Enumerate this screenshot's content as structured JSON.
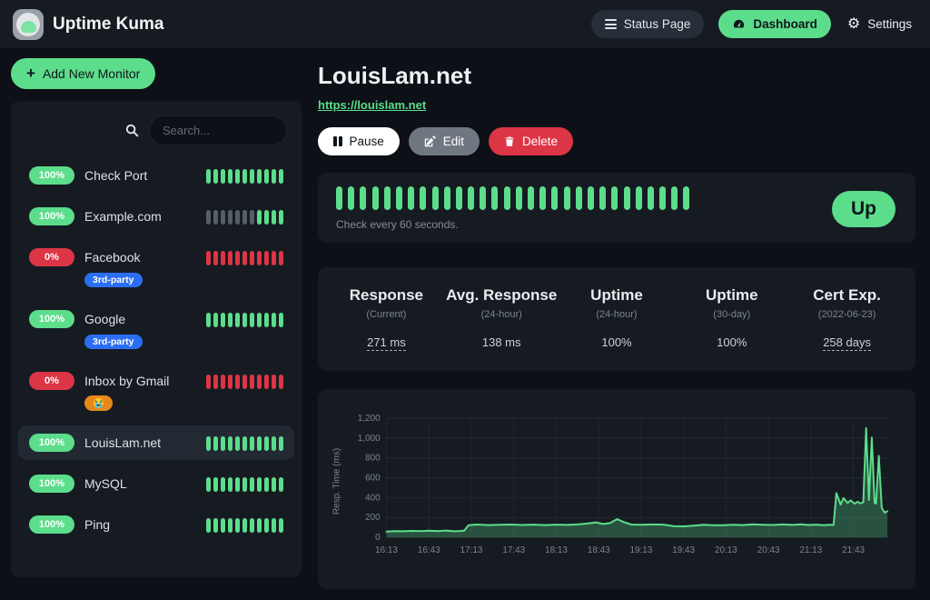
{
  "colors": {
    "accent_green": "#5cdd8b",
    "danger_red": "#dc3545",
    "tag_blue": "#2c6ef2",
    "tag_orange": "#e8871a",
    "beat_up": "#5cdd8b",
    "beat_down": "#dc3545",
    "beat_empty": "#575e66",
    "card_bg": "#161b22",
    "page_bg": "#0d1117"
  },
  "navbar": {
    "brand": "Uptime Kuma",
    "status_page_label": "Status Page",
    "dashboard_label": "Dashboard",
    "settings_label": "Settings"
  },
  "sidebar": {
    "add_button_label": "Add New Monitor",
    "search_placeholder": "Search...",
    "monitors": [
      {
        "name": "Check Port",
        "uptime": "100%",
        "status": "up",
        "selected": false,
        "beats": [
          {
            "state": "up",
            "count": 11
          }
        ]
      },
      {
        "name": "Example.com",
        "uptime": "100%",
        "status": "up",
        "selected": false,
        "beats": [
          {
            "state": "empty",
            "count": 7
          },
          {
            "state": "up",
            "count": 4
          }
        ]
      },
      {
        "name": "Facebook",
        "uptime": "0%",
        "status": "down",
        "selected": false,
        "tag": {
          "label": "3rd-party",
          "color": "#2c6ef2"
        },
        "beats": [
          {
            "state": "down",
            "count": 11
          }
        ]
      },
      {
        "name": "Google",
        "uptime": "100%",
        "status": "up",
        "selected": false,
        "tag": {
          "label": "3rd-party",
          "color": "#2c6ef2"
        },
        "beats": [
          {
            "state": "up",
            "count": 11
          }
        ]
      },
      {
        "name": "Inbox by Gmail",
        "uptime": "0%",
        "status": "down",
        "selected": false,
        "tag": {
          "label": "😭",
          "color": "#e8871a"
        },
        "beats": [
          {
            "state": "down",
            "count": 11
          }
        ]
      },
      {
        "name": "LouisLam.net",
        "uptime": "100%",
        "status": "up",
        "selected": true,
        "beats": [
          {
            "state": "up",
            "count": 11
          }
        ]
      },
      {
        "name": "MySQL",
        "uptime": "100%",
        "status": "up",
        "selected": false,
        "beats": [
          {
            "state": "up",
            "count": 11
          }
        ]
      },
      {
        "name": "Ping",
        "uptime": "100%",
        "status": "up",
        "selected": false,
        "beats": [
          {
            "state": "up",
            "count": 11
          }
        ]
      }
    ]
  },
  "main": {
    "title": "LouisLam.net",
    "url": "https://louislam.net",
    "actions": {
      "pause": "Pause",
      "edit": "Edit",
      "delete": "Delete"
    },
    "heartbeat": {
      "beat_count": 30,
      "status_label": "Up",
      "interval_text": "Check every 60 seconds."
    },
    "stats": [
      {
        "title": "Response",
        "subtitle": "(Current)",
        "value": "271 ms",
        "link": true
      },
      {
        "title": "Avg. Response",
        "subtitle": "(24-hour)",
        "value": "138 ms",
        "link": false
      },
      {
        "title": "Uptime",
        "subtitle": "(24-hour)",
        "value": "100%",
        "link": false
      },
      {
        "title": "Uptime",
        "subtitle": "(30-day)",
        "value": "100%",
        "link": false
      },
      {
        "title": "Cert Exp.",
        "subtitle": "(2022-06-23)",
        "value": "258 days",
        "link": true
      }
    ]
  },
  "chart_data": {
    "type": "area",
    "title": "",
    "xlabel": "",
    "ylabel": "Resp. Time (ms)",
    "ylim": [
      0,
      1200
    ],
    "x_range_minutes": [
      0,
      356
    ],
    "grid": true,
    "legend": "none",
    "line_color": "#5cdd8b",
    "fill_opacity": 0.28,
    "y_ticks": [
      {
        "value": 0,
        "label": "0"
      },
      {
        "value": 200,
        "label": "200"
      },
      {
        "value": 400,
        "label": "400"
      },
      {
        "value": 600,
        "label": "600"
      },
      {
        "value": 800,
        "label": "800"
      },
      {
        "value": 1000,
        "label": "1,000"
      },
      {
        "value": 1200,
        "label": "1,200"
      }
    ],
    "x_ticks": [
      {
        "min": 0,
        "label": "16:13"
      },
      {
        "min": 30,
        "label": "16:43"
      },
      {
        "min": 60,
        "label": "17:13"
      },
      {
        "min": 90,
        "label": "17:43"
      },
      {
        "min": 120,
        "label": "18:13"
      },
      {
        "min": 150,
        "label": "18:43"
      },
      {
        "min": 180,
        "label": "19:13"
      },
      {
        "min": 210,
        "label": "19:43"
      },
      {
        "min": 240,
        "label": "20:13"
      },
      {
        "min": 270,
        "label": "20:43"
      },
      {
        "min": 300,
        "label": "21:13"
      },
      {
        "min": 330,
        "label": "21:43"
      }
    ],
    "series": [
      {
        "name": "Resp. Time (ms)",
        "points": [
          [
            0,
            58
          ],
          [
            6,
            62
          ],
          [
            12,
            60
          ],
          [
            18,
            64
          ],
          [
            24,
            61
          ],
          [
            30,
            66
          ],
          [
            36,
            62
          ],
          [
            42,
            68
          ],
          [
            48,
            60
          ],
          [
            52,
            63
          ],
          [
            55,
            68
          ],
          [
            58,
            122
          ],
          [
            64,
            128
          ],
          [
            72,
            123
          ],
          [
            80,
            126
          ],
          [
            88,
            128
          ],
          [
            96,
            124
          ],
          [
            104,
            127
          ],
          [
            112,
            123
          ],
          [
            120,
            127
          ],
          [
            128,
            125
          ],
          [
            136,
            130
          ],
          [
            142,
            138
          ],
          [
            148,
            150
          ],
          [
            153,
            134
          ],
          [
            158,
            143
          ],
          [
            163,
            183
          ],
          [
            168,
            152
          ],
          [
            173,
            128
          ],
          [
            180,
            126
          ],
          [
            188,
            129
          ],
          [
            196,
            127
          ],
          [
            203,
            112
          ],
          [
            210,
            110
          ],
          [
            217,
            117
          ],
          [
            224,
            126
          ],
          [
            231,
            122
          ],
          [
            238,
            121
          ],
          [
            245,
            126
          ],
          [
            252,
            123
          ],
          [
            259,
            131
          ],
          [
            266,
            126
          ],
          [
            273,
            124
          ],
          [
            280,
            129
          ],
          [
            287,
            125
          ],
          [
            293,
            130
          ],
          [
            298,
            124
          ],
          [
            304,
            127
          ],
          [
            309,
            122
          ],
          [
            313,
            126
          ],
          [
            316,
            124
          ],
          [
            318,
            445
          ],
          [
            321,
            330
          ],
          [
            323,
            395
          ],
          [
            326,
            345
          ],
          [
            328,
            372
          ],
          [
            331,
            338
          ],
          [
            333,
            358
          ],
          [
            335,
            342
          ],
          [
            337,
            352
          ],
          [
            339,
            1100
          ],
          [
            341,
            375
          ],
          [
            343,
            1005
          ],
          [
            345,
            348
          ],
          [
            346,
            338
          ],
          [
            348,
            820
          ],
          [
            350,
            298
          ],
          [
            352,
            248
          ],
          [
            354,
            262
          ]
        ]
      }
    ]
  }
}
